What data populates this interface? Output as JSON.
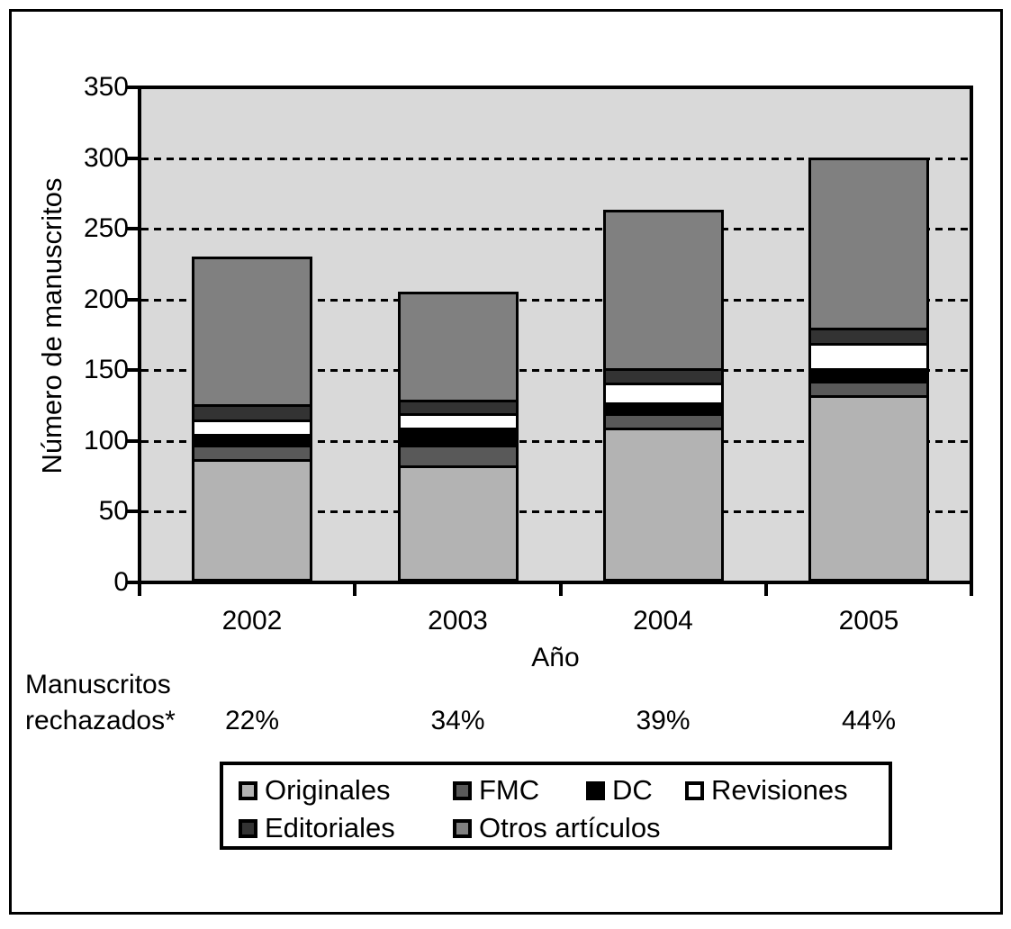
{
  "chart_data": {
    "type": "bar",
    "stacked": true,
    "xlabel": "Año",
    "ylabel": "Número de manuscritos",
    "categories": [
      "2002",
      "2003",
      "2004",
      "2005"
    ],
    "series": [
      {
        "name": "Originales",
        "color": "#b3b3b3",
        "values": [
          85,
          80,
          107,
          130
        ]
      },
      {
        "name": "FMC",
        "color": "#595959",
        "values": [
          10,
          15,
          10,
          10
        ]
      },
      {
        "name": "DC",
        "color": "#000000",
        "values": [
          8,
          12,
          8,
          9
        ]
      },
      {
        "name": "Revisiones",
        "color": "#ffffff",
        "values": [
          10,
          10,
          14,
          18
        ]
      },
      {
        "name": "Editoriales",
        "color": "#333333",
        "values": [
          11,
          10,
          10,
          11
        ]
      },
      {
        "name": "Otros artículos",
        "color": "#808080",
        "values": [
          106,
          78,
          114,
          122
        ]
      }
    ],
    "ylim": [
      0,
      350
    ],
    "yticks": [
      0,
      50,
      100,
      150,
      200,
      250,
      300,
      350
    ],
    "grid": "dashed-horizontal",
    "plot_background": "#d9d9d9",
    "legend_position": "bottom",
    "annotation_row": {
      "label_line1": "Manuscritos",
      "label_line2": "rechazados*",
      "values": [
        "22%",
        "34%",
        "39%",
        "44%"
      ]
    }
  },
  "legend": {
    "items": [
      {
        "label": "Originales",
        "color": "#b3b3b3"
      },
      {
        "label": "FMC",
        "color": "#595959"
      },
      {
        "label": "DC",
        "color": "#000000"
      },
      {
        "label": "Revisiones",
        "color": "#ffffff"
      },
      {
        "label": "Editoriales",
        "color": "#333333"
      },
      {
        "label": "Otros artículos",
        "color": "#808080"
      }
    ]
  }
}
